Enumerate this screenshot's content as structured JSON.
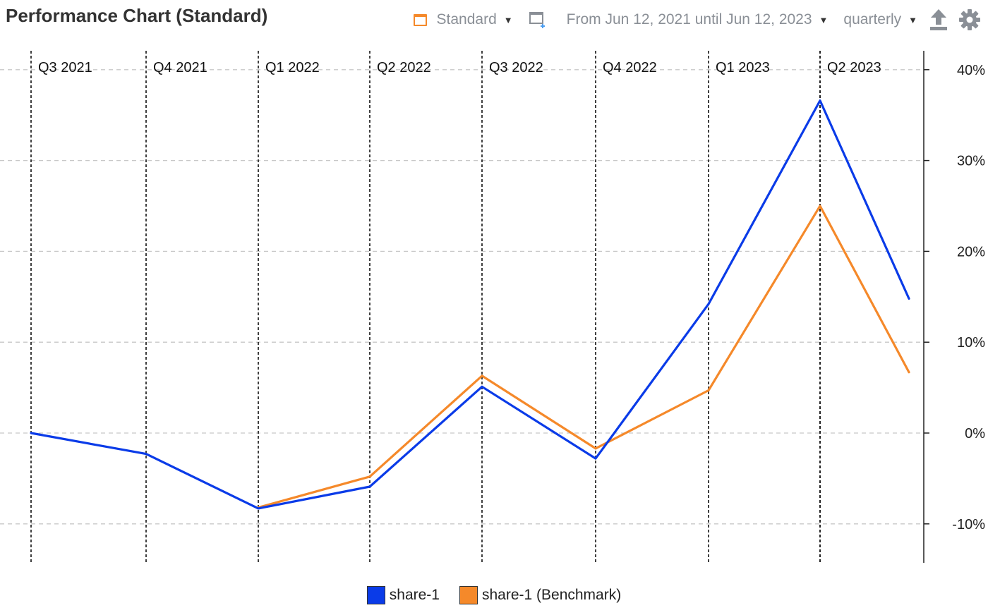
{
  "header": {
    "title": "Performance Chart (Standard)",
    "view_label": "Standard",
    "range_label": "From Jun 12, 2021 until Jun 12, 2023",
    "interval_label": "quarterly"
  },
  "icons": {
    "view": "chart-view-icon",
    "add_window": "add-window-icon",
    "export": "export-icon",
    "settings": "gear-icon"
  },
  "colors": {
    "accent": "#f5892a",
    "series_primary": "#0a3be8",
    "series_benchmark": "#f5892a",
    "toolbar_text": "#8a8f96"
  },
  "chart_data": {
    "type": "line",
    "x_labels": [
      "Q3 2021",
      "Q4 2021",
      "Q1 2022",
      "Q2 2022",
      "Q3 2022",
      "Q4 2022",
      "Q1 2023",
      "Q2 2023"
    ],
    "x": [
      "2021-06-12",
      "2021-09-30",
      "2021-12-31",
      "2022-03-31",
      "2022-06-30",
      "2022-09-30",
      "2022-12-31",
      "2023-03-31",
      "2023-06-12"
    ],
    "series": [
      {
        "name": "share-1",
        "color": "#0a3be8",
        "values": [
          0.0,
          -2.3,
          -8.3,
          -5.9,
          5.1,
          -2.8,
          14.2,
          36.6,
          14.8
        ]
      },
      {
        "name": "share-1 (Benchmark)",
        "color": "#f5892a",
        "values": [
          null,
          null,
          -8.2,
          -4.8,
          6.3,
          -1.7,
          4.7,
          25.0,
          6.7
        ]
      }
    ],
    "y_ticks": [
      "40%",
      "30%",
      "20%",
      "10%",
      "0%",
      "-10%"
    ],
    "ylim": [
      -14,
      42
    ],
    "grid": true,
    "legend_position": "bottom-center"
  }
}
